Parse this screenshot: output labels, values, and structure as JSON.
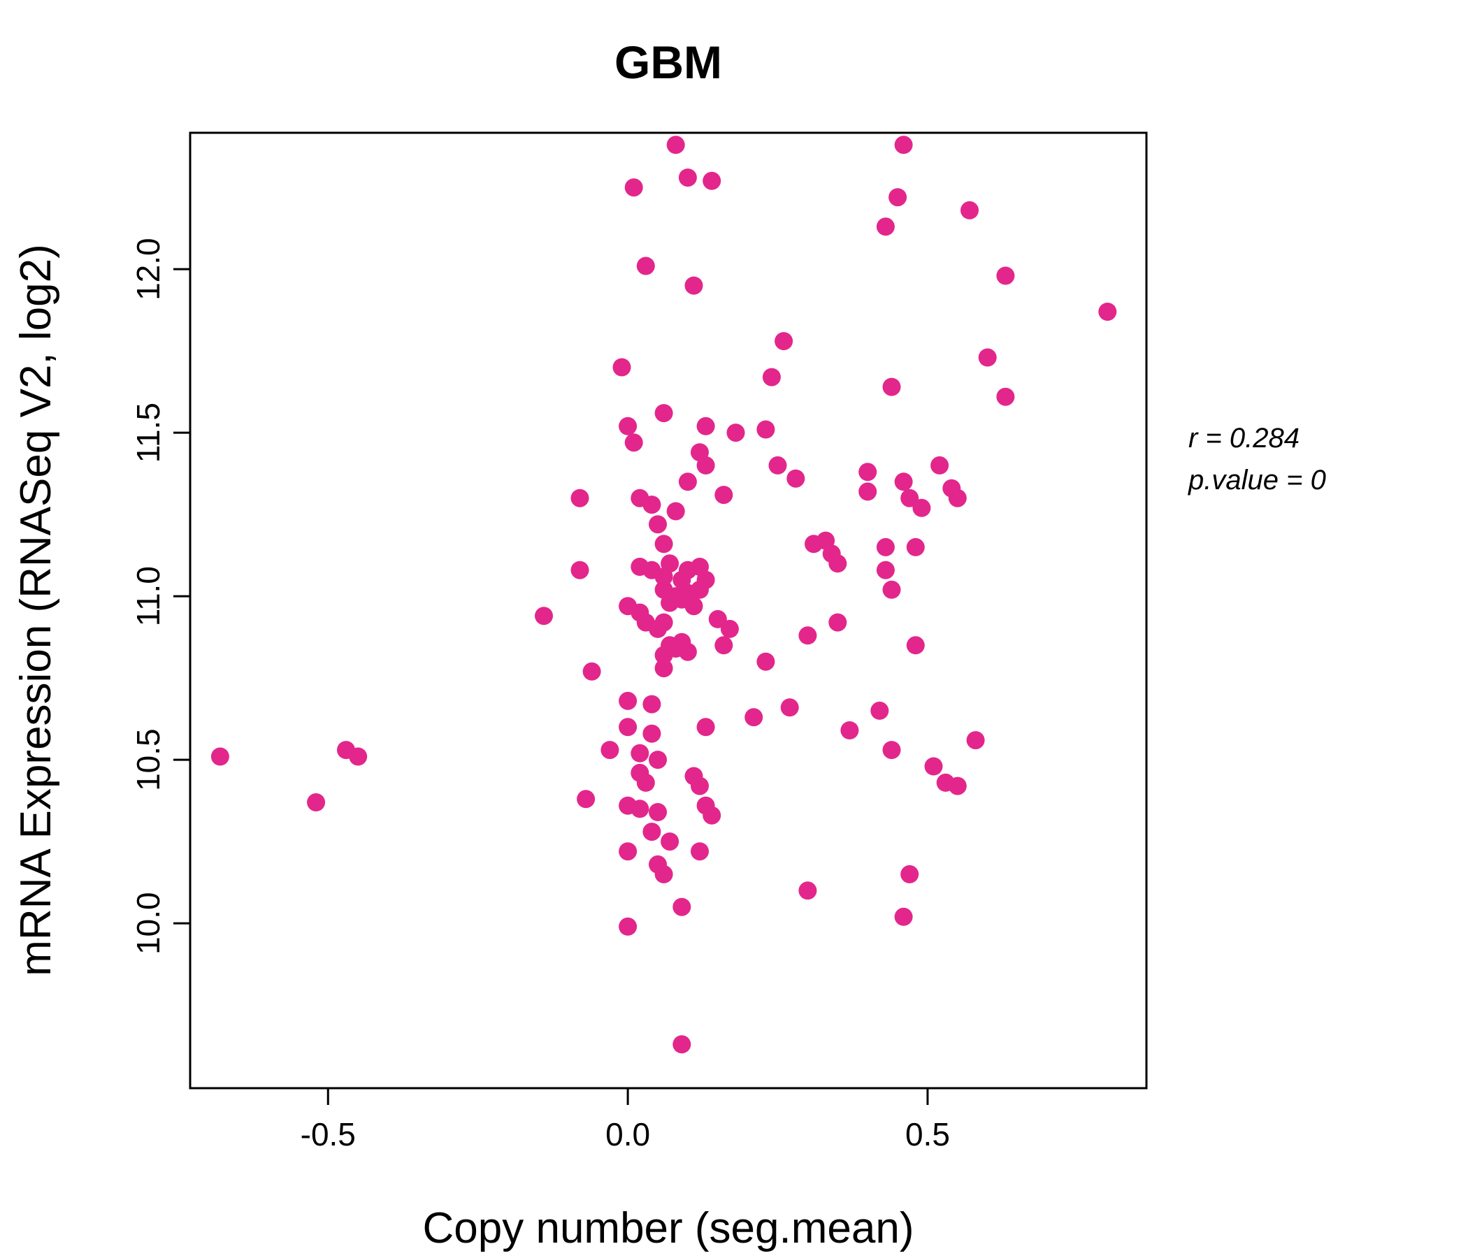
{
  "chart_data": {
    "type": "scatter",
    "title": "GBM",
    "xlabel": "Copy number (seg.mean)",
    "ylabel": "mRNA Expression (RNASeq V2, log2)",
    "xlim": [
      -0.73,
      0.865
    ],
    "ylim": [
      9.496,
      12.417
    ],
    "xticks": [
      -0.5,
      0.0,
      0.5
    ],
    "xtick_labels": [
      "-0.5",
      "0.0",
      "0.5"
    ],
    "yticks": [
      10.0,
      10.5,
      11.0,
      11.5,
      12.0
    ],
    "ytick_labels": [
      "10.0",
      "10.5",
      "11.0",
      "11.5",
      "12.0"
    ],
    "grid": false,
    "legend": "none",
    "point_color": "#E3268C",
    "title_color": "#E3268C",
    "annotation": {
      "line1": "r = 0.284",
      "line2": "p.value = 0"
    },
    "points": [
      [
        -0.68,
        10.51
      ],
      [
        -0.52,
        10.37
      ],
      [
        -0.47,
        10.53
      ],
      [
        -0.45,
        10.51
      ],
      [
        0.08,
        12.38
      ],
      [
        0.46,
        12.38
      ],
      [
        0.1,
        12.28
      ],
      [
        0.14,
        12.27
      ],
      [
        0.01,
        12.25
      ],
      [
        0.45,
        12.22
      ],
      [
        0.57,
        12.18
      ],
      [
        0.43,
        12.13
      ],
      [
        0.03,
        12.01
      ],
      [
        0.63,
        11.98
      ],
      [
        0.11,
        11.95
      ],
      [
        0.8,
        11.87
      ],
      [
        0.26,
        11.78
      ],
      [
        0.6,
        11.73
      ],
      [
        -0.01,
        11.7
      ],
      [
        0.24,
        11.67
      ],
      [
        0.44,
        11.64
      ],
      [
        0.63,
        11.61
      ],
      [
        0.06,
        11.56
      ],
      [
        0.0,
        11.52
      ],
      [
        0.13,
        11.52
      ],
      [
        0.23,
        11.51
      ],
      [
        0.18,
        11.5
      ],
      [
        0.01,
        11.47
      ],
      [
        0.12,
        11.44
      ],
      [
        0.13,
        11.4
      ],
      [
        0.25,
        11.4
      ],
      [
        0.52,
        11.4
      ],
      [
        0.4,
        11.38
      ],
      [
        0.28,
        11.36
      ],
      [
        0.1,
        11.35
      ],
      [
        0.46,
        11.35
      ],
      [
        0.54,
        11.33
      ],
      [
        0.4,
        11.32
      ],
      [
        0.16,
        11.31
      ],
      [
        -0.08,
        11.3
      ],
      [
        0.02,
        11.3
      ],
      [
        0.47,
        11.3
      ],
      [
        0.55,
        11.3
      ],
      [
        0.04,
        11.28
      ],
      [
        0.49,
        11.27
      ],
      [
        0.08,
        11.26
      ],
      [
        0.05,
        11.22
      ],
      [
        0.33,
        11.17
      ],
      [
        0.06,
        11.16
      ],
      [
        0.31,
        11.16
      ],
      [
        0.43,
        11.15
      ],
      [
        0.48,
        11.15
      ],
      [
        0.34,
        11.13
      ],
      [
        0.35,
        11.1
      ],
      [
        0.07,
        11.1
      ],
      [
        0.02,
        11.09
      ],
      [
        0.12,
        11.09
      ],
      [
        -0.08,
        11.08
      ],
      [
        0.04,
        11.08
      ],
      [
        0.1,
        11.08
      ],
      [
        0.43,
        11.08
      ],
      [
        0.06,
        11.06
      ],
      [
        0.09,
        11.05
      ],
      [
        0.13,
        11.05
      ],
      [
        0.06,
        11.02
      ],
      [
        0.12,
        11.02
      ],
      [
        0.44,
        11.02
      ],
      [
        0.1,
        11.01
      ],
      [
        0.08,
        11.0
      ],
      [
        0.09,
        10.99
      ],
      [
        0.07,
        10.98
      ],
      [
        0.0,
        10.97
      ],
      [
        0.11,
        10.97
      ],
      [
        0.02,
        10.95
      ],
      [
        -0.14,
        10.94
      ],
      [
        0.15,
        10.93
      ],
      [
        0.03,
        10.92
      ],
      [
        0.06,
        10.92
      ],
      [
        0.35,
        10.92
      ],
      [
        0.05,
        10.9
      ],
      [
        0.17,
        10.9
      ],
      [
        0.3,
        10.88
      ],
      [
        0.09,
        10.86
      ],
      [
        0.07,
        10.85
      ],
      [
        0.16,
        10.85
      ],
      [
        0.48,
        10.85
      ],
      [
        0.08,
        10.84
      ],
      [
        0.1,
        10.83
      ],
      [
        0.06,
        10.82
      ],
      [
        0.23,
        10.8
      ],
      [
        0.06,
        10.78
      ],
      [
        -0.06,
        10.77
      ],
      [
        0.0,
        10.68
      ],
      [
        0.04,
        10.67
      ],
      [
        0.27,
        10.66
      ],
      [
        0.42,
        10.65
      ],
      [
        0.21,
        10.63
      ],
      [
        0.0,
        10.6
      ],
      [
        0.13,
        10.6
      ],
      [
        0.37,
        10.59
      ],
      [
        0.04,
        10.58
      ],
      [
        0.58,
        10.56
      ],
      [
        -0.03,
        10.53
      ],
      [
        0.44,
        10.53
      ],
      [
        0.02,
        10.52
      ],
      [
        0.05,
        10.5
      ],
      [
        0.51,
        10.48
      ],
      [
        0.02,
        10.46
      ],
      [
        0.11,
        10.45
      ],
      [
        0.03,
        10.43
      ],
      [
        0.53,
        10.43
      ],
      [
        0.12,
        10.42
      ],
      [
        0.55,
        10.42
      ],
      [
        -0.07,
        10.38
      ],
      [
        0.0,
        10.36
      ],
      [
        0.13,
        10.36
      ],
      [
        0.02,
        10.35
      ],
      [
        0.05,
        10.34
      ],
      [
        0.14,
        10.33
      ],
      [
        0.04,
        10.28
      ],
      [
        0.07,
        10.25
      ],
      [
        0.0,
        10.22
      ],
      [
        0.12,
        10.22
      ],
      [
        0.05,
        10.18
      ],
      [
        0.06,
        10.15
      ],
      [
        0.47,
        10.15
      ],
      [
        0.3,
        10.1
      ],
      [
        0.09,
        10.05
      ],
      [
        0.46,
        10.02
      ],
      [
        0.0,
        9.99
      ],
      [
        0.09,
        9.63
      ]
    ]
  }
}
